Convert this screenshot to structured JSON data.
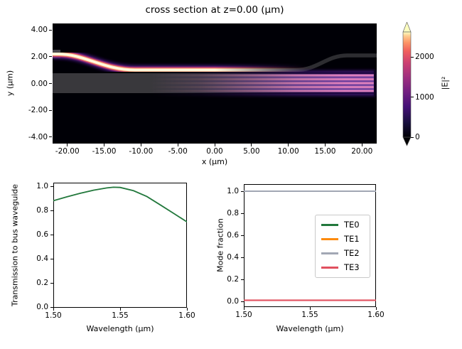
{
  "palette": {
    "figure_background": "#ffffff",
    "text": "#000000",
    "heatmap_background": "#000006",
    "structure_gray": "#39383c",
    "structure_gray_dark": "#2d2d31",
    "input_stub_gray": "#4a494e",
    "field_bright_core": "#fdf0c6",
    "field_orange": "#fb9b62",
    "field_pink": "#d6456f",
    "field_magenta": "#8c2a84",
    "field_purple_glow": "#3a1270",
    "stripe_pink": "#e383bd",
    "stripe_base_purple": "#6a3fa0",
    "transmission_green": "#22783c",
    "te0_green": "#22783c",
    "te1_orange": "#fd8b0e",
    "te2_gray": "#a2a7b4",
    "te3_red": "#e1505f",
    "colormap_name": "magma"
  },
  "chart_data": [
    {
      "type": "heatmap",
      "title": "cross section at z=0.00 (μm)",
      "xlabel": "x (μm)",
      "ylabel": "y (μm)",
      "xlim": [
        -22,
        22
      ],
      "ylim": [
        -4.5,
        4.5
      ],
      "xticks": {
        "values": [
          -20,
          -15,
          -10,
          -5,
          0,
          5,
          10,
          15,
          20
        ],
        "labels": [
          "-20.00",
          "-15.00",
          "-10.00",
          "-5.00",
          "0.00",
          "5.00",
          "10.00",
          "15.00",
          "20.00"
        ]
      },
      "yticks": {
        "values": [
          4,
          2,
          0,
          -2,
          -4
        ],
        "labels": [
          "4.00",
          "2.00",
          "0.00",
          "-2.00",
          "-4.00"
        ]
      },
      "colormap": "magma",
      "colorbar": {
        "label": "|E|²",
        "vmin": 0,
        "vmax": 2620,
        "extend": "both",
        "ticks": {
          "values": [
            0,
            1000,
            2000
          ],
          "labels": [
            "0",
            "1000",
            "2000"
          ]
        }
      },
      "scene": {
        "description": "Bright |E|^2 field in an input waveguide that bends down from y=2.1 um at x=-22 to y=0.95 um near x=-11, runs parallel to a wide bus waveguide and fades as power couples over; the bus waveguide (gray slab from y=-0.8 to y=0.7 um) develops horizontal multimode interference stripes that strengthen toward +x; the now-dark input branch bends back up to y=2.05 um for x>11.",
        "input_waveguide_centerline_um": [
          [
            -22,
            2.15
          ],
          [
            -17,
            1.9
          ],
          [
            -11,
            0.95
          ],
          [
            11,
            0.95
          ],
          [
            15,
            1.5
          ],
          [
            18,
            2.05
          ],
          [
            22,
            2.05
          ]
        ],
        "bus_waveguide_y_extent_um": [
          -0.8,
          0.7
        ],
        "bright_field_x_extent_um": [
          -22,
          12
        ],
        "stripe_count": 5
      }
    },
    {
      "type": "line",
      "xlabel": "Wavelength (μm)",
      "ylabel": "Transmission to bus waveguide",
      "xlim": [
        1.5,
        1.6
      ],
      "ylim": [
        0.0,
        1.03
      ],
      "xticks": {
        "values": [
          1.5,
          1.55,
          1.6
        ],
        "labels": [
          "1.50",
          "1.55",
          "1.60"
        ]
      },
      "yticks": {
        "values": [
          0.0,
          0.2,
          0.4,
          0.6,
          0.8,
          1.0
        ],
        "labels": [
          "0.0",
          "0.2",
          "0.4",
          "0.6",
          "0.8",
          "1.0"
        ]
      },
      "x": [
        1.5,
        1.51,
        1.52,
        1.53,
        1.54,
        1.545,
        1.55,
        1.56,
        1.57,
        1.58,
        1.59,
        1.6
      ],
      "series": [
        {
          "name": "transmission",
          "color": "#22783c",
          "values": [
            0.88,
            0.912,
            0.941,
            0.967,
            0.986,
            0.992,
            0.99,
            0.963,
            0.915,
            0.846,
            0.776,
            0.705
          ]
        }
      ],
      "grid": false,
      "legend": null
    },
    {
      "type": "line",
      "xlabel": "Wavelength (μm)",
      "ylabel": "Mode fraction",
      "xlim": [
        1.5,
        1.6
      ],
      "ylim": [
        -0.05,
        1.05
      ],
      "xticks": {
        "values": [
          1.5,
          1.55,
          1.6
        ],
        "labels": [
          "1.50",
          "1.55",
          "1.60"
        ]
      },
      "yticks": {
        "values": [
          0.0,
          0.2,
          0.4,
          0.6,
          0.8,
          1.0
        ],
        "labels": [
          "0.0",
          "0.2",
          "0.4",
          "0.6",
          "0.8",
          "1.0"
        ]
      },
      "x": [
        1.5,
        1.6
      ],
      "series": [
        {
          "name": "TE0",
          "color": "#22783c",
          "values": [
            0.008,
            0.008
          ]
        },
        {
          "name": "TE1",
          "color": "#fd8b0e",
          "values": [
            0.008,
            0.008
          ]
        },
        {
          "name": "TE2",
          "color": "#a2a7b4",
          "values": [
            1.0,
            1.0
          ]
        },
        {
          "name": "TE3",
          "color": "#e1505f",
          "values": [
            0.01,
            0.01
          ]
        }
      ],
      "legend": {
        "position": "center right",
        "entries": [
          "TE0",
          "TE1",
          "TE2",
          "TE3"
        ]
      }
    }
  ]
}
